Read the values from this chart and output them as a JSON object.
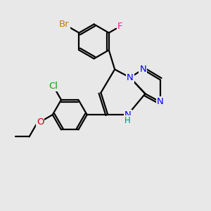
{
  "background_color": "#e8e8e8",
  "bond_color": "#000000",
  "bond_width": 1.6,
  "atom_labels": {
    "Br": {
      "color": "#cc7700",
      "fontsize": 9.5
    },
    "F": {
      "color": "#ff1493",
      "fontsize": 9.5
    },
    "Cl": {
      "color": "#00aa00",
      "fontsize": 9.5
    },
    "O": {
      "color": "#cc0000",
      "fontsize": 9.5
    },
    "N": {
      "color": "#0000ff",
      "fontsize": 9.5
    },
    "NH": {
      "color": "#0000cc",
      "fontsize": 9.5
    },
    "H": {
      "color": "#008888",
      "fontsize": 8.5
    }
  },
  "figsize": [
    3.0,
    3.0
  ],
  "dpi": 100
}
